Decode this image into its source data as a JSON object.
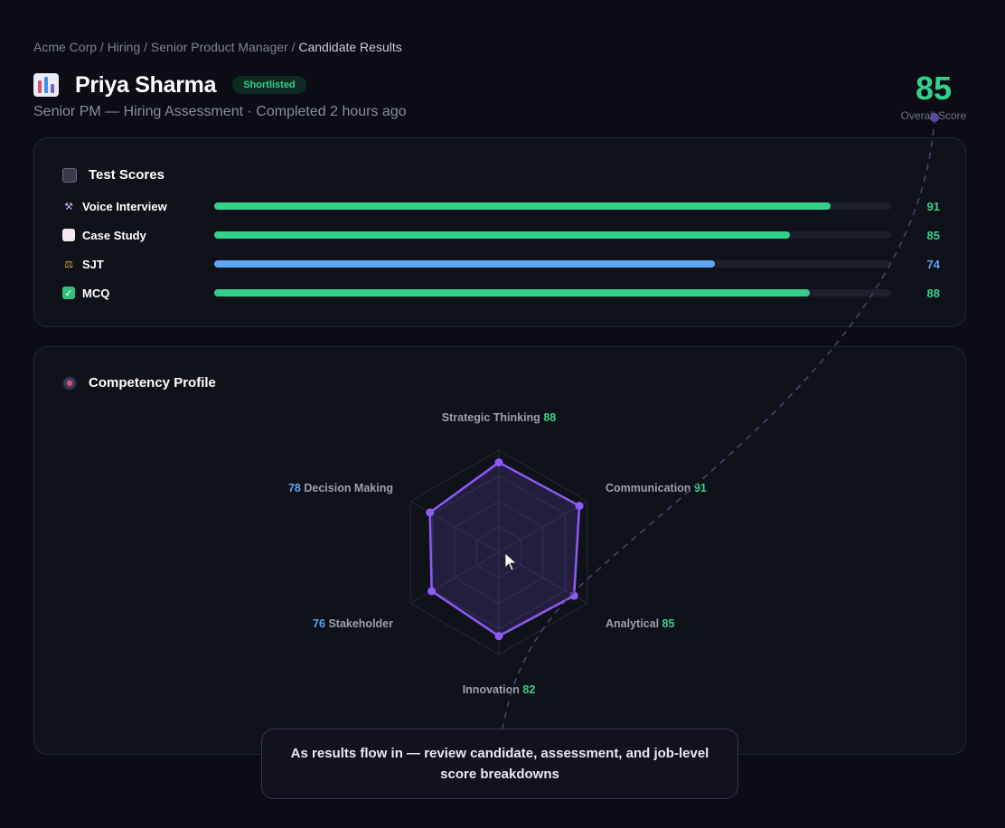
{
  "breadcrumb": {
    "path": "Acme Corp / Hiring / Senior Product Manager / ",
    "current": "Candidate Results"
  },
  "candidate": {
    "name": "Priya Sharma",
    "status": "Shortlisted",
    "subtitle": "Senior PM — Hiring Assessment · Completed 2 hours ago",
    "icon": "bar-chart-icon"
  },
  "overall": {
    "value": "85",
    "label": "Overall Score"
  },
  "test_scores": {
    "title": "Test Scores",
    "icon": "clipboard-icon",
    "items": [
      {
        "label": "Voice Interview",
        "value": "91",
        "score": 91,
        "color": "#33d08c",
        "icon": "microphone-icon"
      },
      {
        "label": "Case Study",
        "value": "85",
        "score": 85,
        "color": "#33d08c",
        "icon": "document-icon"
      },
      {
        "label": "SJT",
        "value": "74",
        "score": 74,
        "color": "#5ca6f5",
        "icon": "scales-icon"
      },
      {
        "label": "MCQ",
        "value": "88",
        "score": 88,
        "color": "#33d08c",
        "icon": "checkbox-icon"
      }
    ]
  },
  "competency": {
    "title": "Competency Profile",
    "icon": "target-icon",
    "axes": [
      {
        "label": "Strategic Thinking",
        "value": "88",
        "score": 88,
        "tone": "green"
      },
      {
        "label": "Communication",
        "value": "91",
        "score": 91,
        "tone": "green"
      },
      {
        "label": "Analytical",
        "value": "85",
        "score": 85,
        "tone": "green"
      },
      {
        "label": "Innovation",
        "value": "82",
        "score": 82,
        "tone": "green"
      },
      {
        "label": "Stakeholder",
        "value": "76",
        "score": 76,
        "tone": "blue"
      },
      {
        "label": "Decision Making",
        "value": "78",
        "score": 78,
        "tone": "blue"
      }
    ]
  },
  "tooltip": {
    "text": "As results flow in — review candidate, assessment, and job-level score breakdowns"
  },
  "colors": {
    "accent_green": "#33d08c",
    "accent_blue": "#5ca6f5",
    "radar_purple": "#8b5cf6"
  }
}
